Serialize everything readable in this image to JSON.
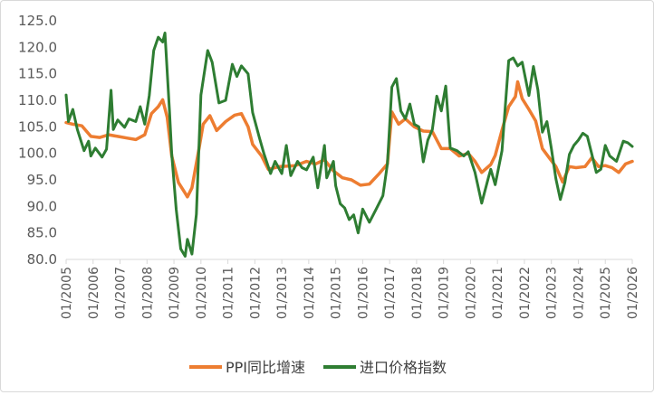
{
  "chart_data": {
    "type": "line",
    "ylim": [
      80,
      125
    ],
    "yticks": [
      "125.0",
      "120.0",
      "115.0",
      "110.0",
      "105.0",
      "100.0",
      "95.0",
      "90.0",
      "85.0",
      "80.0"
    ],
    "xtick_labels": [
      "01/2005",
      "01/2006",
      "01/2007",
      "01/2008",
      "01/2009",
      "01/2010",
      "01/2011",
      "01/2012",
      "01/2013",
      "01/2014",
      "01/2015",
      "01/2016",
      "01/2017",
      "01/2018",
      "01/2019",
      "01/2020",
      "01/2021",
      "01/2022",
      "01/2023",
      "01/2024",
      "01/2025",
      "01/2026"
    ],
    "grid": false,
    "legend_position": "bottom",
    "series": [
      {
        "name": "PPI同比增速",
        "color": "#ED7D31",
        "points": [
          [
            "2005-01",
            105.8
          ],
          [
            "2005-04",
            105.5
          ],
          [
            "2005-08",
            105.2
          ],
          [
            "2005-12",
            103.2
          ],
          [
            "2006-04",
            103.0
          ],
          [
            "2006-08",
            103.5
          ],
          [
            "2006-12",
            103.2
          ],
          [
            "2007-04",
            102.9
          ],
          [
            "2007-08",
            102.6
          ],
          [
            "2007-12",
            103.5
          ],
          [
            "2008-03",
            107.5
          ],
          [
            "2008-06",
            108.8
          ],
          [
            "2008-08",
            110.1
          ],
          [
            "2008-10",
            106.8
          ],
          [
            "2008-12",
            99.5
          ],
          [
            "2009-03",
            94.5
          ],
          [
            "2009-06",
            92.5
          ],
          [
            "2009-07",
            91.8
          ],
          [
            "2009-09",
            93.5
          ],
          [
            "2009-12",
            100.5
          ],
          [
            "2010-02",
            105.5
          ],
          [
            "2010-05",
            107.1
          ],
          [
            "2010-08",
            104.3
          ],
          [
            "2010-12",
            106.0
          ],
          [
            "2011-04",
            107.2
          ],
          [
            "2011-07",
            107.5
          ],
          [
            "2011-10",
            105.0
          ],
          [
            "2011-12",
            101.7
          ],
          [
            "2012-04",
            99.5
          ],
          [
            "2012-07",
            97.0
          ],
          [
            "2012-12",
            97.5
          ],
          [
            "2013-04",
            97.6
          ],
          [
            "2013-07",
            97.7
          ],
          [
            "2013-12",
            98.5
          ],
          [
            "2014-04",
            98.0
          ],
          [
            "2014-08",
            98.8
          ],
          [
            "2014-12",
            96.7
          ],
          [
            "2015-04",
            95.4
          ],
          [
            "2015-08",
            95.0
          ],
          [
            "2015-12",
            94.0
          ],
          [
            "2016-04",
            94.2
          ],
          [
            "2016-08",
            96.0
          ],
          [
            "2016-12",
            98.0
          ],
          [
            "2017-02",
            107.8
          ],
          [
            "2017-05",
            105.5
          ],
          [
            "2017-08",
            106.5
          ],
          [
            "2017-12",
            105.0
          ],
          [
            "2018-04",
            104.2
          ],
          [
            "2018-08",
            104.1
          ],
          [
            "2018-12",
            100.9
          ],
          [
            "2019-04",
            100.9
          ],
          [
            "2019-08",
            99.5
          ],
          [
            "2019-12",
            100.0
          ],
          [
            "2020-03",
            98.5
          ],
          [
            "2020-06",
            96.4
          ],
          [
            "2020-10",
            97.9
          ],
          [
            "2020-12",
            99.6
          ],
          [
            "2021-03",
            104.4
          ],
          [
            "2021-06",
            108.8
          ],
          [
            "2021-09",
            110.7
          ],
          [
            "2021-10",
            113.5
          ],
          [
            "2021-12",
            110.3
          ],
          [
            "2022-03",
            108.3
          ],
          [
            "2022-06",
            106.1
          ],
          [
            "2022-09",
            100.9
          ],
          [
            "2022-12",
            99.2
          ],
          [
            "2023-03",
            97.5
          ],
          [
            "2023-06",
            94.6
          ],
          [
            "2023-09",
            97.5
          ],
          [
            "2023-12",
            97.3
          ],
          [
            "2024-04",
            97.5
          ],
          [
            "2024-07",
            99.2
          ],
          [
            "2024-10",
            97.5
          ],
          [
            "2025-01",
            97.7
          ],
          [
            "2025-04",
            97.3
          ],
          [
            "2025-07",
            96.4
          ],
          [
            "2025-10",
            98.0
          ],
          [
            "2026-01",
            98.5
          ]
        ]
      },
      {
        "name": "进口价格指数",
        "color": "#2E7D32",
        "points": [
          [
            "2005-01",
            111.0
          ],
          [
            "2005-02",
            106.0
          ],
          [
            "2005-04",
            108.3
          ],
          [
            "2005-06",
            104.5
          ],
          [
            "2005-09",
            100.5
          ],
          [
            "2005-11",
            102.3
          ],
          [
            "2005-12",
            99.5
          ],
          [
            "2006-02",
            101.0
          ],
          [
            "2006-05",
            99.3
          ],
          [
            "2006-07",
            100.8
          ],
          [
            "2006-09",
            111.9
          ],
          [
            "2006-10",
            104.5
          ],
          [
            "2006-12",
            106.3
          ],
          [
            "2007-03",
            104.9
          ],
          [
            "2007-05",
            106.5
          ],
          [
            "2007-08",
            106.0
          ],
          [
            "2007-10",
            108.8
          ],
          [
            "2007-12",
            105.5
          ],
          [
            "2008-02",
            110.9
          ],
          [
            "2008-04",
            119.4
          ],
          [
            "2008-06",
            121.9
          ],
          [
            "2008-08",
            121.0
          ],
          [
            "2008-09",
            122.7
          ],
          [
            "2008-11",
            108.0
          ],
          [
            "2008-12",
            99.8
          ],
          [
            "2009-02",
            89.5
          ],
          [
            "2009-04",
            82.0
          ],
          [
            "2009-06",
            80.6
          ],
          [
            "2009-07",
            83.8
          ],
          [
            "2009-09",
            81.0
          ],
          [
            "2009-11",
            88.5
          ],
          [
            "2010-01",
            111.0
          ],
          [
            "2010-04",
            119.4
          ],
          [
            "2010-06",
            117.2
          ],
          [
            "2010-09",
            109.5
          ],
          [
            "2010-12",
            110.0
          ],
          [
            "2011-03",
            116.8
          ],
          [
            "2011-05",
            114.5
          ],
          [
            "2011-07",
            116.5
          ],
          [
            "2011-10",
            115.0
          ],
          [
            "2011-12",
            107.7
          ],
          [
            "2012-03",
            103.0
          ],
          [
            "2012-05",
            100.0
          ],
          [
            "2012-08",
            96.2
          ],
          [
            "2012-10",
            98.5
          ],
          [
            "2013-01",
            96.2
          ],
          [
            "2013-03",
            101.5
          ],
          [
            "2013-05",
            95.8
          ],
          [
            "2013-08",
            98.5
          ],
          [
            "2013-10",
            97.3
          ],
          [
            "2013-12",
            96.9
          ],
          [
            "2014-03",
            99.3
          ],
          [
            "2014-05",
            93.5
          ],
          [
            "2014-08",
            101.5
          ],
          [
            "2014-09",
            95.4
          ],
          [
            "2014-12",
            98.5
          ],
          [
            "2015-01",
            93.9
          ],
          [
            "2015-03",
            90.5
          ],
          [
            "2015-05",
            89.7
          ],
          [
            "2015-07",
            87.5
          ],
          [
            "2015-09",
            88.4
          ],
          [
            "2015-11",
            85.0
          ],
          [
            "2016-01",
            89.5
          ],
          [
            "2016-04",
            87.0
          ],
          [
            "2016-07",
            89.5
          ],
          [
            "2016-10",
            92.0
          ],
          [
            "2016-12",
            98.0
          ],
          [
            "2017-02",
            112.5
          ],
          [
            "2017-04",
            114.1
          ],
          [
            "2017-06",
            108.0
          ],
          [
            "2017-08",
            106.5
          ],
          [
            "2017-10",
            109.3
          ],
          [
            "2017-12",
            105.5
          ],
          [
            "2018-02",
            105.0
          ],
          [
            "2018-04",
            98.4
          ],
          [
            "2018-06",
            102.5
          ],
          [
            "2018-08",
            104.5
          ],
          [
            "2018-10",
            110.8
          ],
          [
            "2018-12",
            108.0
          ],
          [
            "2019-02",
            112.7
          ],
          [
            "2019-04",
            101.0
          ],
          [
            "2019-07",
            100.5
          ],
          [
            "2019-10",
            99.5
          ],
          [
            "2019-12",
            100.3
          ],
          [
            "2020-03",
            96.4
          ],
          [
            "2020-06",
            90.6
          ],
          [
            "2020-09",
            95.5
          ],
          [
            "2020-10",
            97.0
          ],
          [
            "2020-12",
            94.1
          ],
          [
            "2021-03",
            100.5
          ],
          [
            "2021-06",
            117.5
          ],
          [
            "2021-08",
            118.0
          ],
          [
            "2021-10",
            116.5
          ],
          [
            "2021-12",
            117.2
          ],
          [
            "2022-03",
            110.9
          ],
          [
            "2022-05",
            116.4
          ],
          [
            "2022-07",
            112.0
          ],
          [
            "2022-09",
            104.0
          ],
          [
            "2022-11",
            106.0
          ],
          [
            "2023-01",
            100.9
          ],
          [
            "2023-03",
            95.2
          ],
          [
            "2023-05",
            91.3
          ],
          [
            "2023-07",
            94.5
          ],
          [
            "2023-09",
            99.8
          ],
          [
            "2023-11",
            101.5
          ],
          [
            "2024-01",
            102.5
          ],
          [
            "2024-03",
            103.8
          ],
          [
            "2024-05",
            103.2
          ],
          [
            "2024-07",
            99.8
          ],
          [
            "2024-09",
            96.4
          ],
          [
            "2024-11",
            97.0
          ],
          [
            "2025-01",
            101.5
          ],
          [
            "2025-03",
            99.5
          ],
          [
            "2025-06",
            98.5
          ],
          [
            "2025-09",
            102.3
          ],
          [
            "2025-11",
            102.0
          ],
          [
            "2026-01",
            101.3
          ]
        ]
      }
    ]
  }
}
